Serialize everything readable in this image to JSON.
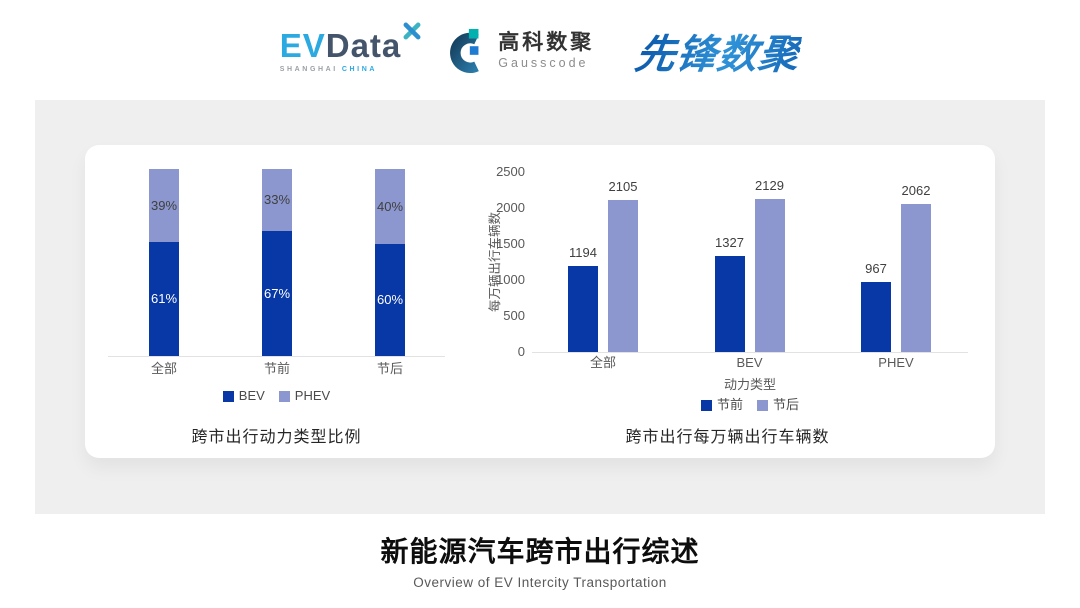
{
  "header": {
    "logos": {
      "evdata": {
        "ev": "EV",
        "data": "Data",
        "tagline_left": "SHANGHAI",
        "tagline_right": "CHINA"
      },
      "gausscode": {
        "cn": "高科数聚",
        "en": "Gausscode"
      },
      "pioneer": {
        "text": "先锋数聚"
      }
    }
  },
  "footer": {
    "title": "新能源汽车跨市出行综述",
    "subtitle": "Overview of EV Intercity Transportation"
  },
  "colors": {
    "bev_dark_blue": "#0838a5",
    "phev_periwinkle": "#8b97ce",
    "band_gray": "#efefef",
    "axis_text": "#595959",
    "value_text": "#404040"
  },
  "chart_data": [
    {
      "type": "bar",
      "variant": "stacked-percent",
      "title": "跨市出行动力类型比例",
      "categories": [
        "全部",
        "节前",
        "节后"
      ],
      "series": [
        {
          "name": "BEV",
          "color": "#0838a5",
          "label_color": "#ffffff",
          "values": [
            61,
            67,
            60
          ],
          "unit": "%"
        },
        {
          "name": "PHEV",
          "color": "#8b97ce",
          "label_color": "#404040",
          "values": [
            39,
            33,
            40
          ],
          "unit": "%"
        }
      ],
      "ylim": [
        0,
        100
      ],
      "grid": false,
      "legend_position": "bottom"
    },
    {
      "type": "bar",
      "variant": "grouped",
      "title": "跨市出行每万辆出行车辆数",
      "categories": [
        "全部",
        "BEV",
        "PHEV"
      ],
      "xlabel": "动力类型",
      "ylabel": "每万辆出行车辆数",
      "ylim": [
        0,
        2500
      ],
      "yticks": [
        0,
        500,
        1000,
        1500,
        2000,
        2500
      ],
      "series": [
        {
          "name": "节前",
          "color": "#0838a5",
          "values": [
            1194,
            1327,
            967
          ]
        },
        {
          "name": "节后",
          "color": "#8b97ce",
          "values": [
            2105,
            2129,
            2062
          ]
        }
      ],
      "value_labels": true,
      "grid": false,
      "legend_position": "bottom"
    }
  ]
}
